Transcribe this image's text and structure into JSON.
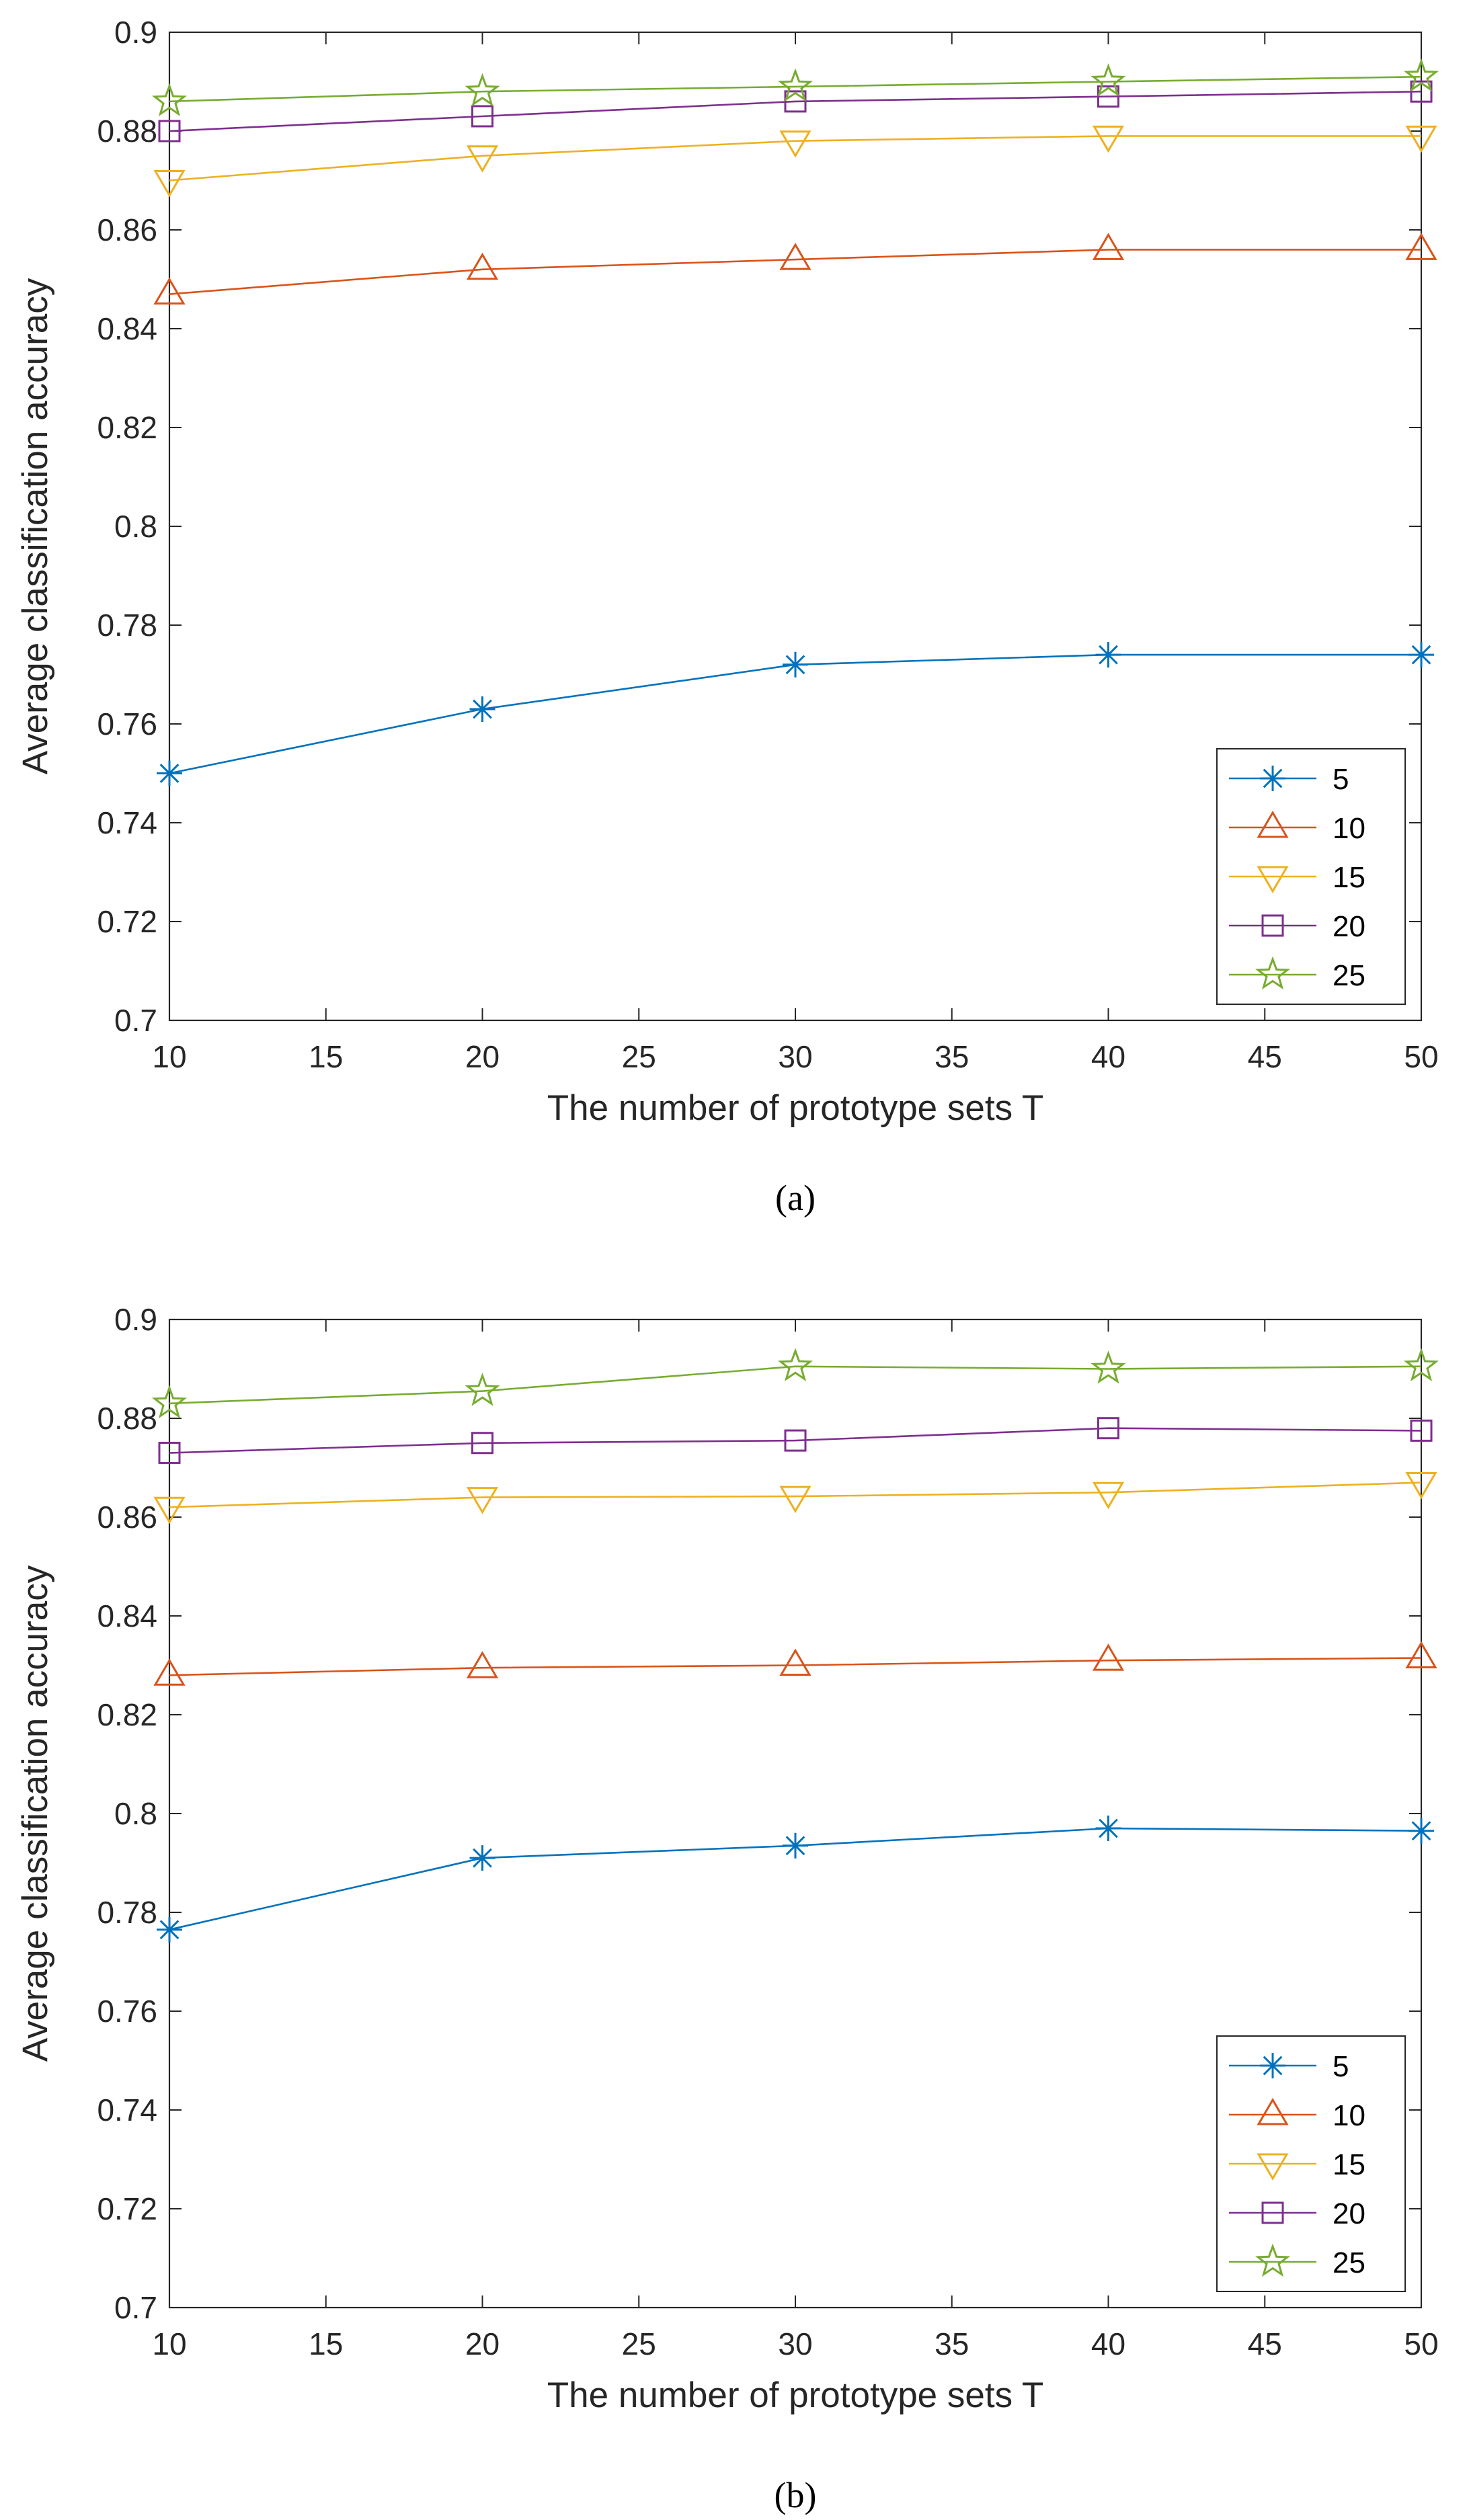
{
  "colors": {
    "5": "#0072BD",
    "10": "#D95319",
    "15": "#EDB120",
    "20": "#7E2F8E",
    "25": "#77AC30"
  },
  "chart_data": [
    {
      "type": "line",
      "caption": "(a)",
      "xlabel": "The number of prototype sets T",
      "ylabel": "Average classification accuracy",
      "xlim": [
        10,
        50
      ],
      "ylim": [
        0.7,
        0.9
      ],
      "xticks": [
        "10",
        "15",
        "20",
        "25",
        "30",
        "35",
        "40",
        "45",
        "50"
      ],
      "yticks": [
        "0.7",
        "0.72",
        "0.74",
        "0.76",
        "0.78",
        "0.8",
        "0.82",
        "0.84",
        "0.86",
        "0.88",
        "0.9"
      ],
      "legend_position": "bottom-right",
      "x": [
        10,
        20,
        30,
        40,
        50
      ],
      "series": [
        {
          "name": "5",
          "marker": "asterisk",
          "values": [
            0.75,
            0.763,
            0.772,
            0.774,
            0.774
          ]
        },
        {
          "name": "10",
          "marker": "triangle-up",
          "values": [
            0.847,
            0.852,
            0.854,
            0.856,
            0.856
          ]
        },
        {
          "name": "15",
          "marker": "triangle-down",
          "values": [
            0.87,
            0.875,
            0.878,
            0.879,
            0.879
          ]
        },
        {
          "name": "20",
          "marker": "square",
          "values": [
            0.88,
            0.883,
            0.886,
            0.887,
            0.888
          ]
        },
        {
          "name": "25",
          "marker": "pentagram",
          "values": [
            0.886,
            0.888,
            0.889,
            0.89,
            0.891
          ]
        }
      ]
    },
    {
      "type": "line",
      "caption": "(b)",
      "xlabel": "The number of prototype sets T",
      "ylabel": "Average classification accuracy",
      "xlim": [
        10,
        50
      ],
      "ylim": [
        0.7,
        0.9
      ],
      "xticks": [
        "10",
        "15",
        "20",
        "25",
        "30",
        "35",
        "40",
        "45",
        "50"
      ],
      "yticks": [
        "0.7",
        "0.72",
        "0.74",
        "0.76",
        "0.78",
        "0.8",
        "0.82",
        "0.84",
        "0.86",
        "0.88",
        "0.9"
      ],
      "legend_position": "bottom-right",
      "x": [
        10,
        20,
        30,
        40,
        50
      ],
      "series": [
        {
          "name": "5",
          "marker": "asterisk",
          "values": [
            0.7765,
            0.791,
            0.7935,
            0.797,
            0.7965
          ]
        },
        {
          "name": "10",
          "marker": "triangle-up",
          "values": [
            0.828,
            0.8295,
            0.83,
            0.831,
            0.8315
          ]
        },
        {
          "name": "15",
          "marker": "triangle-down",
          "values": [
            0.862,
            0.864,
            0.8642,
            0.865,
            0.867
          ]
        },
        {
          "name": "20",
          "marker": "square",
          "values": [
            0.873,
            0.875,
            0.8755,
            0.878,
            0.8775
          ]
        },
        {
          "name": "25",
          "marker": "pentagram",
          "values": [
            0.883,
            0.8855,
            0.8905,
            0.89,
            0.8905
          ]
        }
      ]
    }
  ]
}
